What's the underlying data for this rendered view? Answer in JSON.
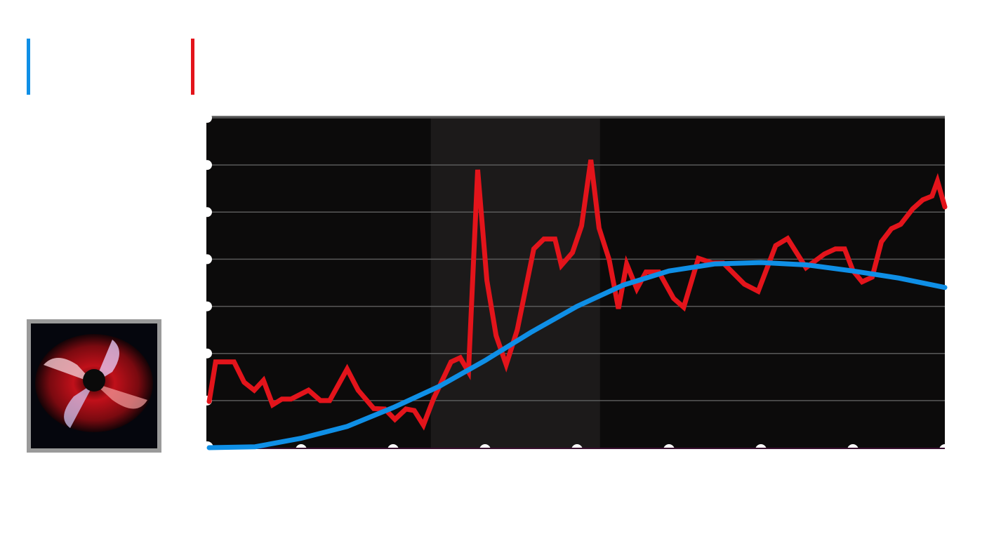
{
  "chart_data": {
    "type": "line",
    "xlim": [
      0,
      8
    ],
    "xticks": [
      0,
      1,
      2,
      3,
      4,
      5,
      6,
      7,
      8
    ],
    "ylim": [
      0,
      7
    ],
    "yticks": [
      0,
      1,
      2,
      3,
      4,
      5,
      6,
      7
    ],
    "grid": true,
    "shaded_range": [
      2.41,
      4.25
    ],
    "series": [
      {
        "color": "#e3141b",
        "x": [
          0,
          0.07,
          0.27,
          0.38,
          0.49,
          0.59,
          0.69,
          0.79,
          0.89,
          1.08,
          1.21,
          1.31,
          1.5,
          1.62,
          1.79,
          1.91,
          2.02,
          2.14,
          2.23,
          2.33,
          2.44,
          2.63,
          2.73,
          2.82,
          2.92,
          3.02,
          3.12,
          3.23,
          3.35,
          3.53,
          3.64,
          3.76,
          3.83,
          3.95,
          4.05,
          4.15,
          4.24,
          4.35,
          4.45,
          4.54,
          4.65,
          4.75,
          4.89,
          5.05,
          5.16,
          5.32,
          5.47,
          5.59,
          5.82,
          5.97,
          6.16,
          6.29,
          6.49,
          6.69,
          6.81,
          6.91,
          7.0,
          7.1,
          7.21,
          7.31,
          7.42,
          7.52,
          7.65,
          7.76,
          7.86,
          7.92,
          8.0
        ],
        "values": [
          0.98,
          1.82,
          1.82,
          1.39,
          1.22,
          1.43,
          0.91,
          1.03,
          1.03,
          1.22,
          1.0,
          1.0,
          1.67,
          1.22,
          0.83,
          0.82,
          0.6,
          0.82,
          0.79,
          0.48,
          1.04,
          1.82,
          1.91,
          1.61,
          5.9,
          3.55,
          2.38,
          1.76,
          2.5,
          4.22,
          4.43,
          4.43,
          3.87,
          4.14,
          4.71,
          6.11,
          4.66,
          3.99,
          2.95,
          3.9,
          3.37,
          3.73,
          3.73,
          3.17,
          2.98,
          4.02,
          3.92,
          3.92,
          3.47,
          3.32,
          4.29,
          4.44,
          3.82,
          4.11,
          4.22,
          4.22,
          3.76,
          3.52,
          3.62,
          4.37,
          4.65,
          4.74,
          5.07,
          5.26,
          5.34,
          5.66,
          5.11
        ]
      },
      {
        "color": "#0f8fe6",
        "x": [
          0,
          0.5,
          1,
          1.5,
          2,
          2.5,
          3,
          3.5,
          4,
          4.5,
          5,
          5.5,
          6,
          6.5,
          7,
          7.5,
          8
        ],
        "values": [
          0,
          0.02,
          0.2,
          0.45,
          0.85,
          1.3,
          1.85,
          2.45,
          3.0,
          3.45,
          3.75,
          3.9,
          3.93,
          3.88,
          3.75,
          3.6,
          3.4
        ]
      }
    ]
  }
}
